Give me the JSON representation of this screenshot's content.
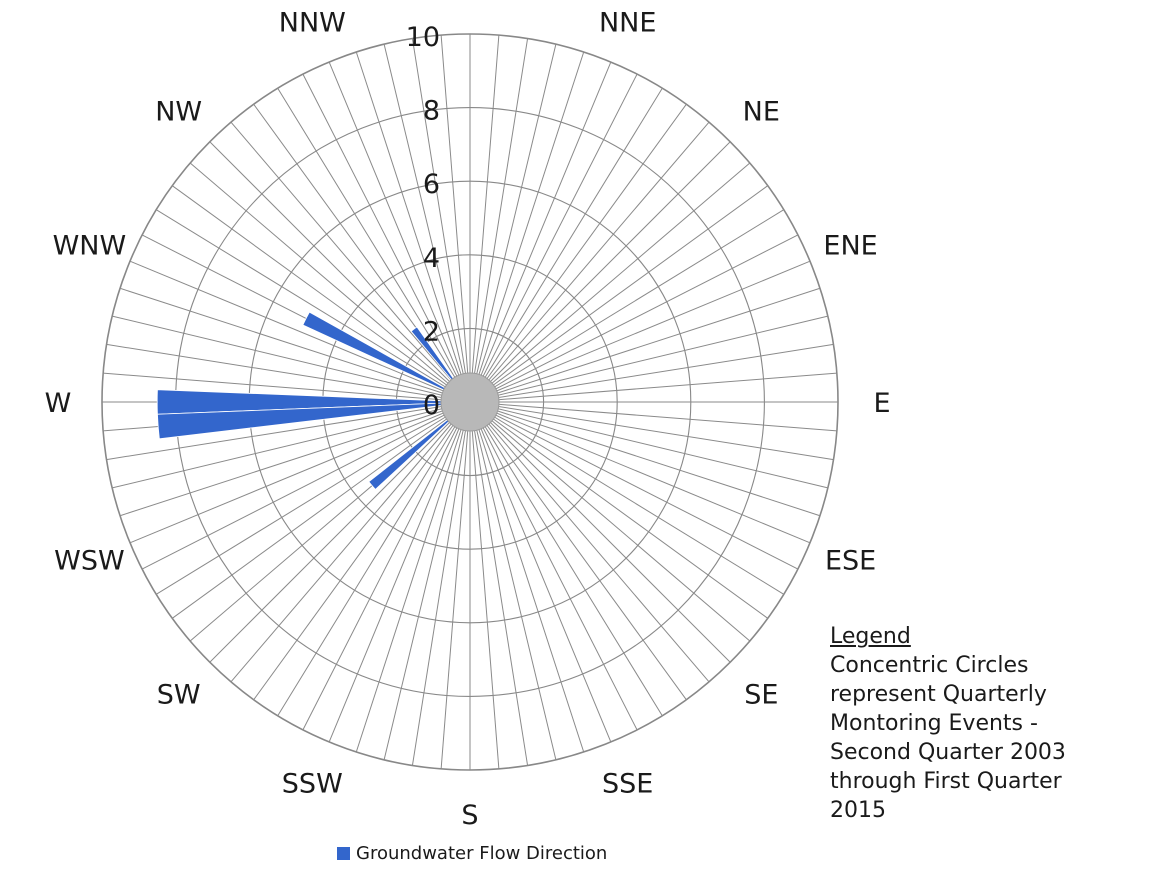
{
  "chart_data": {
    "type": "polar-bar",
    "title": "",
    "series": [
      {
        "name": "Groundwater Flow Direction",
        "color": "#3366cc"
      }
    ],
    "directions": [
      "N",
      "NNE",
      "NE",
      "ENE",
      "E",
      "ESE",
      "SE",
      "SSE",
      "S",
      "SSW",
      "SW",
      "WSW",
      "W",
      "WNW",
      "NW",
      "NNW"
    ],
    "sectors_per_direction": 5,
    "bars": [
      {
        "bearing": 322.5,
        "width": 4.5,
        "value": 2.5
      },
      {
        "bearing": 297,
        "width": 4.5,
        "value": 5.0
      },
      {
        "bearing": 270,
        "width": 4.5,
        "value": 8.5
      },
      {
        "bearing": 265.5,
        "width": 4.5,
        "value": 8.5
      },
      {
        "bearing": 229.5,
        "width": 4.5,
        "value": 3.5
      }
    ],
    "radial_ticks": [
      "0",
      "2",
      "4",
      "6",
      "8",
      "10"
    ],
    "rmax": 10,
    "gridlines": true,
    "legend_position": "bottom"
  },
  "legend_note": {
    "title": "Legend",
    "lines": [
      "Concentric Circles",
      "represent Quarterly",
      "Montoring Events -",
      "Second Quarter 2003",
      "through First Quarter",
      "2015"
    ]
  }
}
